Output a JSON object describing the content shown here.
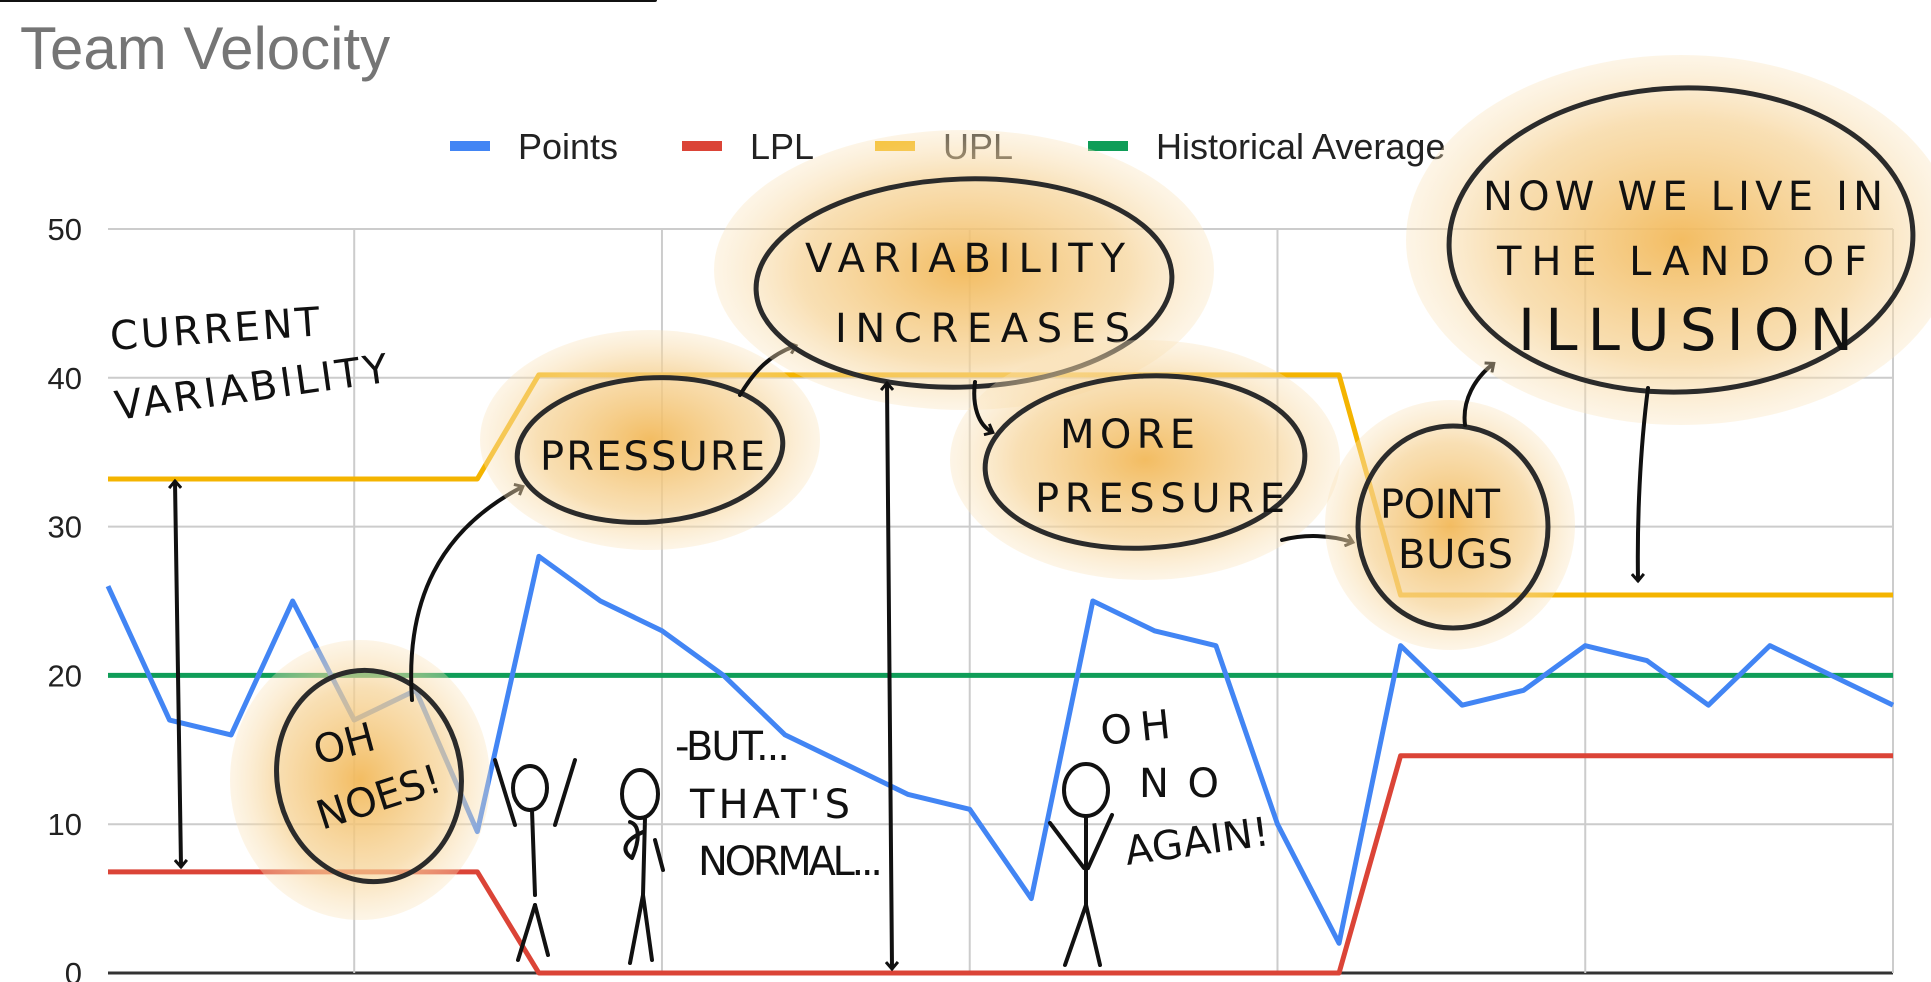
{
  "chart_data": {
    "type": "line",
    "title": "Team Velocity",
    "xlabel": "",
    "ylabel": "",
    "ylim": [
      0,
      50
    ],
    "yticks": [
      0,
      10,
      20,
      30,
      40,
      50
    ],
    "grid": true,
    "legend_position": "top",
    "x": [
      1,
      2,
      3,
      4,
      5,
      6,
      7,
      8,
      9,
      10,
      11,
      12,
      13,
      14,
      15,
      16,
      17,
      18,
      19,
      20,
      21,
      22,
      23,
      24,
      25,
      26,
      27,
      28,
      29,
      30
    ],
    "series": [
      {
        "name": "Points",
        "color": "#4285F4",
        "values": [
          26,
          17,
          16,
          25,
          17,
          19,
          9.5,
          28,
          25,
          23,
          20,
          16,
          14,
          12,
          11,
          5,
          25,
          23,
          22,
          10,
          2,
          22,
          18,
          19,
          22,
          21,
          18,
          22,
          20,
          18
        ]
      },
      {
        "name": "LPL",
        "color": "#DB4437",
        "values": [
          6.8,
          6.8,
          6.8,
          6.8,
          6.8,
          6.8,
          6.8,
          0,
          0,
          0,
          0,
          0,
          0,
          0,
          0,
          0,
          0,
          0,
          0,
          0,
          0,
          14.6,
          14.6,
          14.6,
          14.6,
          14.6,
          14.6,
          14.6,
          14.6,
          14.6
        ]
      },
      {
        "name": "UPL",
        "color": "#F4B400",
        "values": [
          33.2,
          33.2,
          33.2,
          33.2,
          33.2,
          33.2,
          33.2,
          40.2,
          40.2,
          40.2,
          40.2,
          40.2,
          40.2,
          40.2,
          40.2,
          40.2,
          40.2,
          40.2,
          40.2,
          40.2,
          40.2,
          25.4,
          25.4,
          25.4,
          25.4,
          25.4,
          25.4,
          25.4,
          25.4,
          25.4
        ]
      },
      {
        "name": "Historical Average",
        "color": "#0F9D58",
        "values": [
          20,
          20,
          20,
          20,
          20,
          20,
          20,
          20,
          20,
          20,
          20,
          20,
          20,
          20,
          20,
          20,
          20,
          20,
          20,
          20,
          20,
          20,
          20,
          20,
          20,
          20,
          20,
          20,
          20,
          20
        ]
      }
    ],
    "annotations": {
      "current_variability": [
        "CURRENT",
        "VARIABILITY"
      ],
      "oh_noes": [
        "OH",
        "NOES!"
      ],
      "pressure": "PRESSURE",
      "variability_increases": [
        "VARIABILITY",
        "INCREASES"
      ],
      "more_pressure": [
        "MORE",
        "PRESSURE"
      ],
      "point_bugs": [
        "POINT",
        "BUGS"
      ],
      "illusion": [
        "NOW WE LIVE IN",
        "THE  LAND OF",
        "ILLUSION"
      ],
      "but_normal": [
        "-BUT...",
        "THAT'S",
        "NORMAL..."
      ],
      "oh_no_again": [
        "OH",
        "NO",
        "AGAIN!"
      ]
    }
  }
}
